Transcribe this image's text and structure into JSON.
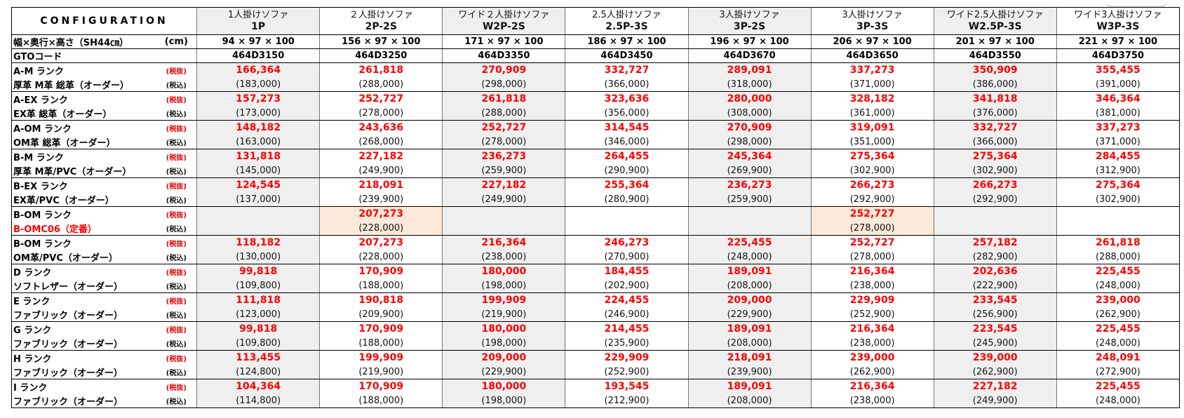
{
  "header": {
    "configuration": "CONFIGURATION",
    "models": [
      {
        "name": "1人掛けソファ",
        "code": "1P"
      },
      {
        "name": "２人掛けソファ",
        "code": "2P-2S"
      },
      {
        "name": "ワイド２人掛けソファ",
        "code": "W2P-2S"
      },
      {
        "name": "2.5人掛けソファ",
        "code": "2.5P-3S"
      },
      {
        "name": "3人掛けソファ",
        "code": "3P-2S"
      },
      {
        "name": "3人掛けソファ",
        "code": "3P-3S"
      },
      {
        "name": "ワイド2.5人掛けソファ",
        "code": "W2.5P-3S"
      },
      {
        "name": "ワイド3人掛けソファ",
        "code": "W3P-3S"
      }
    ]
  },
  "dimensions": {
    "label": "幅×奥行×高さ（SH44㎝）",
    "unit": "(cm)",
    "values": [
      "94 × 97 × 100",
      "156 × 97 × 100",
      "171 × 97 × 100",
      "186 × 97 × 100",
      "196 × 97 × 100",
      "206 × 97 × 100",
      "201 × 97 × 100",
      "221 × 97 × 100"
    ]
  },
  "gto": {
    "label": "GTOコード",
    "values": [
      "464D3150",
      "464D3250",
      "464D3350",
      "464D3450",
      "464D3670",
      "464D3650",
      "464D3550",
      "464D3750"
    ]
  },
  "tags": {
    "excl": "(税抜)",
    "incl": "(税込)"
  },
  "ranks": [
    {
      "rank": "A-M ランク",
      "material": "厚革 M革 総革（オーダー）",
      "excl": [
        "166,364",
        "261,818",
        "270,909",
        "332,727",
        "289,091",
        "337,273",
        "350,909",
        "355,455"
      ],
      "incl": [
        "(183,000)",
        "(288,000)",
        "(298,000)",
        "(366,000)",
        "(318,000)",
        "(371,000)",
        "(386,000)",
        "(391,000)"
      ]
    },
    {
      "rank": "A-EX ランク",
      "material": "EX革 総革（オーダー）",
      "excl": [
        "157,273",
        "252,727",
        "261,818",
        "323,636",
        "280,000",
        "328,182",
        "341,818",
        "346,364"
      ],
      "incl": [
        "(173,000)",
        "(278,000)",
        "(288,000)",
        "(356,000)",
        "(308,000)",
        "(361,000)",
        "(376,000)",
        "(381,000)"
      ]
    },
    {
      "rank": "A-OM ランク",
      "material": "OM革 総革（オーダー）",
      "excl": [
        "148,182",
        "243,636",
        "252,727",
        "314,545",
        "270,909",
        "319,091",
        "332,727",
        "337,273"
      ],
      "incl": [
        "(163,000)",
        "(268,000)",
        "(278,000)",
        "(346,000)",
        "(298,000)",
        "(351,000)",
        "(366,000)",
        "(371,000)"
      ]
    },
    {
      "rank": "B-M ランク",
      "material": "厚革 M革/PVC（オーダー）",
      "excl": [
        "131,818",
        "227,182",
        "236,273",
        "264,455",
        "245,364",
        "275,364",
        "275,364",
        "284,455"
      ],
      "incl": [
        "(145,000)",
        "(249,900)",
        "(259,900)",
        "(290,900)",
        "(269,900)",
        "(302,900)",
        "(302,900)",
        "(312,900)"
      ]
    },
    {
      "rank": "B-EX ランク",
      "material": "EX革/PVC（オーダー）",
      "excl": [
        "124,545",
        "218,091",
        "227,182",
        "255,364",
        "236,273",
        "266,273",
        "266,273",
        "275,364"
      ],
      "incl": [
        "(137,000)",
        "(239,900)",
        "(249,900)",
        "(280,900)",
        "(259,900)",
        "(292,900)",
        "(292,900)",
        "(302,900)"
      ]
    },
    {
      "rank": "B-OM ランク",
      "material": "B-OMC06（定番）",
      "excl": [
        "",
        "207,273",
        "",
        "",
        "",
        "252,727",
        "",
        ""
      ],
      "incl": [
        "",
        "(228,000)",
        "",
        "",
        "",
        "(278,000)",
        "",
        ""
      ]
    },
    {
      "rank": "B-OM ランク",
      "material": "OM革/PVC（オーダー）",
      "excl": [
        "118,182",
        "207,273",
        "216,364",
        "246,273",
        "225,455",
        "252,727",
        "257,182",
        "261,818"
      ],
      "incl": [
        "(130,000)",
        "(228,000)",
        "(238,000)",
        "(270,900)",
        "(248,000)",
        "(278,000)",
        "(282,900)",
        "(288,000)"
      ]
    },
    {
      "rank": "D ランク",
      "material": "ソフトレザー（オーダー）",
      "excl": [
        "99,818",
        "170,909",
        "180,000",
        "184,455",
        "189,091",
        "216,364",
        "202,636",
        "225,455"
      ],
      "incl": [
        "(109,800)",
        "(188,000)",
        "(198,000)",
        "(202,900)",
        "(208,000)",
        "(238,000)",
        "(222,900)",
        "(248,000)"
      ]
    },
    {
      "rank": "E ランク",
      "material": "ファブリック（オーダー）",
      "excl": [
        "111,818",
        "190,818",
        "199,909",
        "224,455",
        "209,000",
        "229,909",
        "233,545",
        "239,000"
      ],
      "incl": [
        "(123,000)",
        "(209,900)",
        "(219,900)",
        "(246,900)",
        "(229,900)",
        "(252,900)",
        "(256,900)",
        "(262,900)"
      ]
    },
    {
      "rank": "G ランク",
      "material": "ファブリック（オーダー）",
      "excl": [
        "99,818",
        "170,909",
        "180,000",
        "214,455",
        "189,091",
        "216,364",
        "223,545",
        "225,455"
      ],
      "incl": [
        "(109,800)",
        "(188,000)",
        "(198,000)",
        "(235,900)",
        "(208,000)",
        "(238,000)",
        "(245,900)",
        "(248,000)"
      ]
    },
    {
      "rank": "H ランク",
      "material": "ファブリック（オーダー）",
      "excl": [
        "113,455",
        "199,909",
        "209,000",
        "229,909",
        "218,091",
        "239,000",
        "239,000",
        "248,091"
      ],
      "incl": [
        "(124,800)",
        "(219,900)",
        "(229,900)",
        "(252,900)",
        "(239,900)",
        "(262,900)",
        "(262,900)",
        "(272,900)"
      ]
    },
    {
      "rank": "I ランク",
      "material": "ファブリック（オーダー）",
      "excl": [
        "104,364",
        "170,909",
        "180,000",
        "193,545",
        "189,091",
        "216,364",
        "227,182",
        "225,455"
      ],
      "incl": [
        "(114,800)",
        "(188,000)",
        "(198,000)",
        "(212,900)",
        "(208,000)",
        "(238,000)",
        "(249,900)",
        "(248,000)"
      ]
    }
  ],
  "colors": {
    "price_red": "#ff0000",
    "shade": "#efefef",
    "peach": "#fde9d9"
  }
}
